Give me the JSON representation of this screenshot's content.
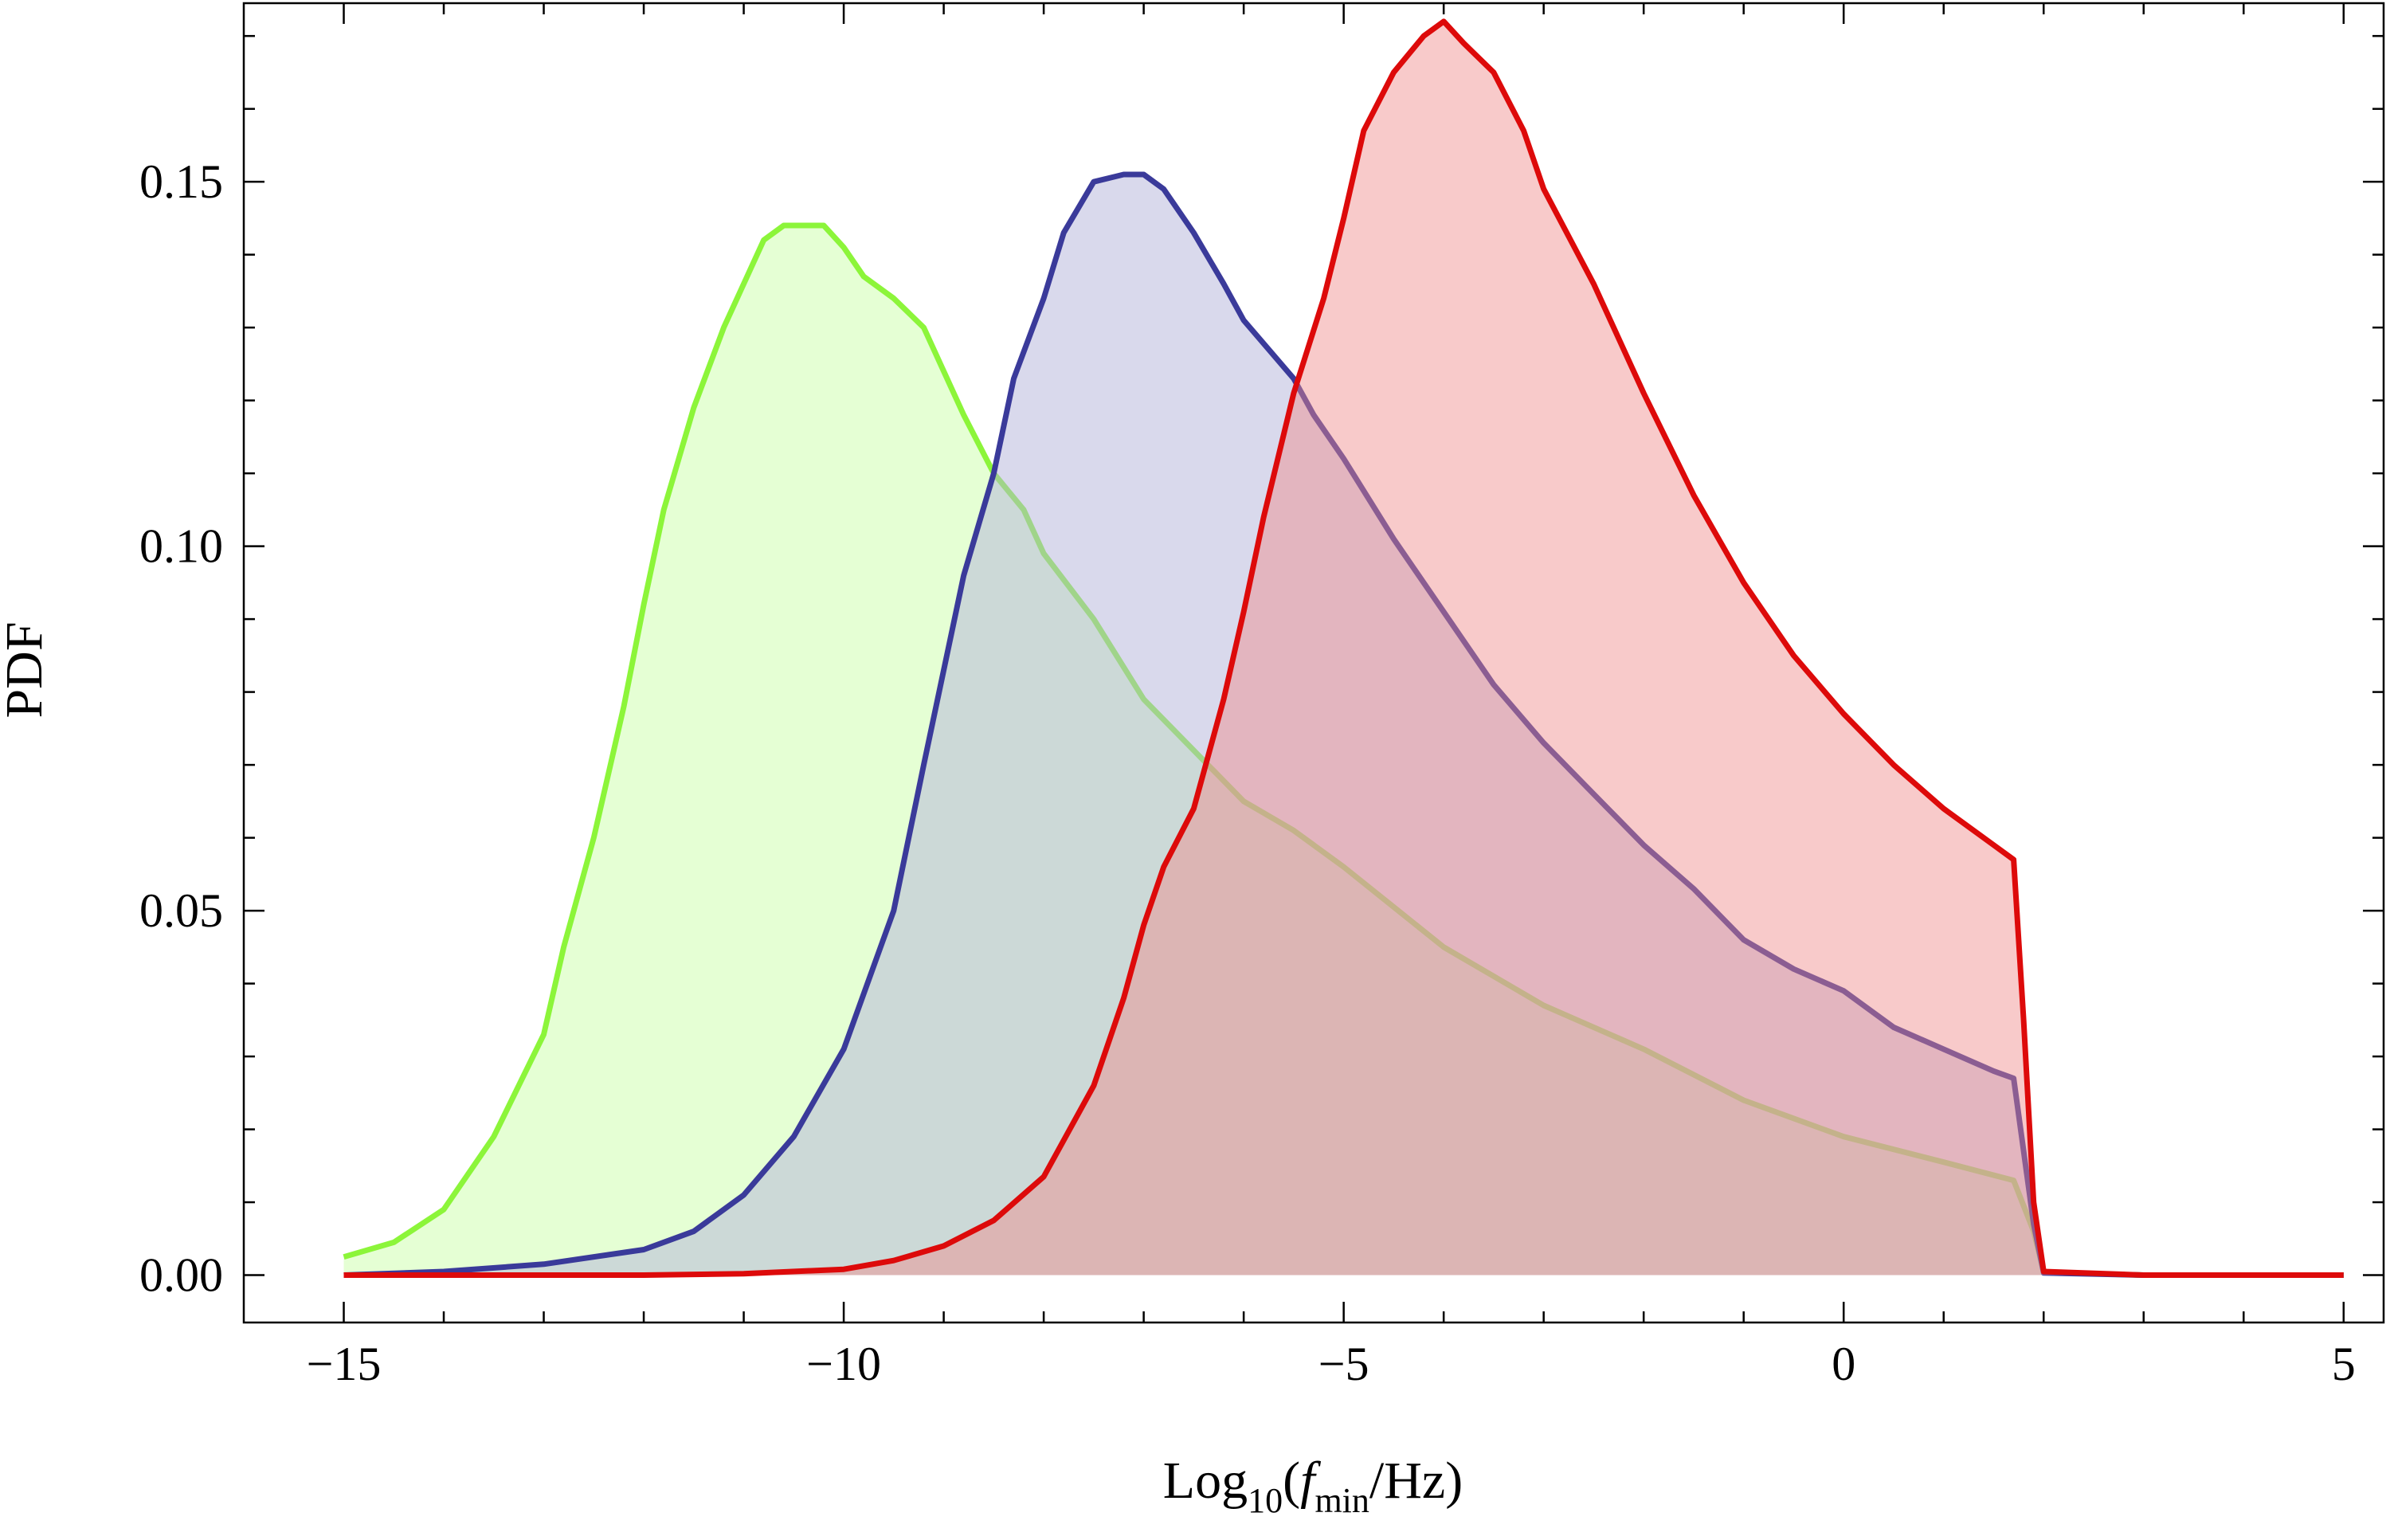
{
  "chart_data": {
    "type": "area",
    "title": "",
    "xlabel": {
      "prefix": "Log",
      "sub1": "10",
      "open": "(",
      "var": "f",
      "sub2": "min",
      "rest": "/Hz)"
    },
    "ylabel": "PDF",
    "xlim": [
      -16,
      5.4
    ],
    "ylim": [
      -0.0065,
      0.1745
    ],
    "x_ticks": [
      -15,
      -10,
      -5,
      0,
      5
    ],
    "x_tick_labels": [
      "−15",
      "−10",
      "−5",
      "0",
      "5"
    ],
    "y_ticks": [
      0.0,
      0.05,
      0.1,
      0.15
    ],
    "y_tick_labels": [
      "0.00",
      "0.05",
      "0.10",
      "0.15"
    ],
    "grid": false,
    "legend": "none",
    "series": [
      {
        "color": "#8cf53a",
        "fill": "#ccffaa",
        "fill_opacity": 0.5,
        "x": [
          -15,
          -14.5,
          -14,
          -13.5,
          -13,
          -12.8,
          -12.5,
          -12.2,
          -12,
          -11.8,
          -11.5,
          -11.2,
          -11,
          -10.8,
          -10.6,
          -10.4,
          -10.2,
          -10,
          -9.8,
          -9.5,
          -9.2,
          -9,
          -8.8,
          -8.5,
          -8.2,
          -8,
          -7.5,
          -7,
          -6.5,
          -6,
          -5.5,
          -5,
          -4,
          -3,
          -2,
          -1,
          0,
          1,
          1.7,
          1.9,
          2.0,
          3,
          4,
          5
        ],
        "y": [
          0.0025,
          0.0045,
          0.009,
          0.019,
          0.033,
          0.045,
          0.06,
          0.078,
          0.092,
          0.105,
          0.119,
          0.13,
          0.136,
          0.142,
          0.144,
          0.144,
          0.144,
          0.141,
          0.137,
          0.134,
          0.13,
          0.124,
          0.118,
          0.11,
          0.105,
          0.099,
          0.09,
          0.079,
          0.072,
          0.065,
          0.061,
          0.056,
          0.045,
          0.037,
          0.031,
          0.024,
          0.019,
          0.0155,
          0.013,
          0.006,
          0.0004,
          0.0,
          0.0,
          0.0
        ]
      },
      {
        "color": "#3a3a9a",
        "fill": "#b3b3d9",
        "fill_opacity": 0.5,
        "x": [
          -15,
          -14,
          -13,
          -12,
          -11.5,
          -11,
          -10.5,
          -10,
          -9.5,
          -9.2,
          -9,
          -8.8,
          -8.5,
          -8.3,
          -8,
          -7.8,
          -7.5,
          -7.2,
          -7,
          -6.8,
          -6.5,
          -6.2,
          -6,
          -5.5,
          -5.3,
          -5,
          -4.5,
          -4,
          -3.5,
          -3,
          -2.5,
          -2,
          -1.5,
          -1,
          -0.5,
          0,
          0.5,
          1,
          1.5,
          1.7,
          1.9,
          2.0,
          3,
          4,
          5
        ],
        "y": [
          0.0,
          0.0005,
          0.0015,
          0.0035,
          0.006,
          0.011,
          0.019,
          0.031,
          0.05,
          0.07,
          0.083,
          0.096,
          0.11,
          0.123,
          0.134,
          0.143,
          0.15,
          0.151,
          0.151,
          0.149,
          0.143,
          0.136,
          0.131,
          0.123,
          0.118,
          0.112,
          0.101,
          0.091,
          0.081,
          0.073,
          0.066,
          0.059,
          0.053,
          0.046,
          0.042,
          0.039,
          0.034,
          0.031,
          0.028,
          0.027,
          0.007,
          0.0003,
          0.0,
          0.0,
          0.0
        ]
      },
      {
        "color": "#dd0a0a",
        "fill": "#f08a8a",
        "fill_opacity": 0.45,
        "x": [
          -15,
          -12,
          -11,
          -10,
          -9.5,
          -9,
          -8.5,
          -8,
          -7.5,
          -7.2,
          -7,
          -6.8,
          -6.5,
          -6.2,
          -6,
          -5.8,
          -5.5,
          -5.2,
          -5,
          -4.8,
          -4.5,
          -4.2,
          -4,
          -3.8,
          -3.5,
          -3.2,
          -3,
          -2.5,
          -2,
          -1.5,
          -1,
          -0.5,
          0,
          0.5,
          1,
          1.5,
          1.7,
          1.8,
          1.9,
          2.0,
          3,
          4,
          5
        ],
        "y": [
          0.0,
          0.0,
          0.0002,
          0.0008,
          0.002,
          0.004,
          0.0075,
          0.0135,
          0.026,
          0.038,
          0.048,
          0.056,
          0.064,
          0.079,
          0.091,
          0.104,
          0.121,
          0.134,
          0.145,
          0.157,
          0.165,
          0.17,
          0.172,
          0.169,
          0.165,
          0.157,
          0.149,
          0.136,
          0.121,
          0.107,
          0.095,
          0.085,
          0.077,
          0.07,
          0.064,
          0.059,
          0.057,
          0.035,
          0.01,
          0.0005,
          0.0,
          0.0,
          0.0
        ]
      }
    ]
  }
}
